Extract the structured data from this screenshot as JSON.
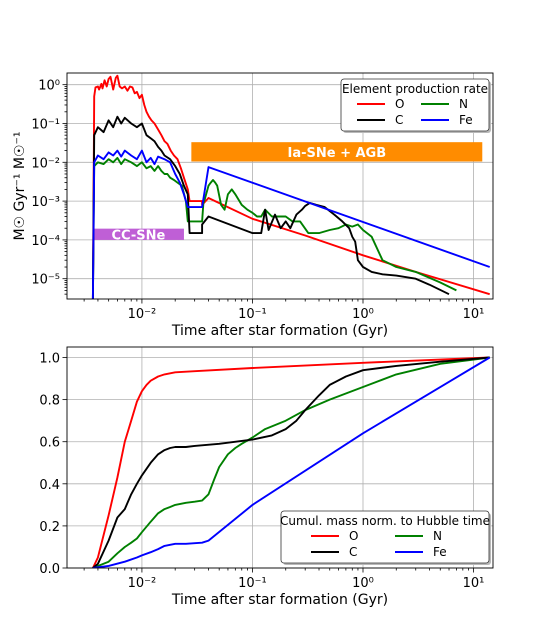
{
  "chart_data": [
    {
      "type": "line",
      "xscale": "log",
      "yscale": "log",
      "xlim": [
        0.0021,
        15
      ],
      "ylim": [
        3e-06,
        2.0
      ],
      "xlabel": "Time after star formation (Gyr)",
      "ylabel": "M☉ Gyr⁻¹ M☉⁻¹",
      "x_tick_labels": [
        "10⁻²",
        "10⁻¹",
        "10⁰",
        "10¹"
      ],
      "y_tick_labels": [
        "10⁻⁵",
        "10⁻⁴",
        "10⁻³",
        "10⁻²",
        "10⁻¹",
        "10⁰"
      ],
      "grid": true,
      "legend_title": "Element production rate",
      "legend_position": "top-right",
      "annotations": [
        {
          "text": "CC-SNe",
          "color": "#bf5fd6",
          "x_range": [
            0.0036,
            0.024
          ],
          "y_range": [
            0.0001,
            0.000195
          ]
        },
        {
          "text": "Ia-SNe + AGB",
          "color": "#ff8c00",
          "x_range": [
            0.028,
            12
          ],
          "y_range": [
            0.0105,
            0.033
          ]
        }
      ],
      "series": [
        {
          "name": "O",
          "color": "#ff0000",
          "x": [
            0.0036,
            0.0037,
            0.0038,
            0.004,
            0.0041,
            0.0043,
            0.0044,
            0.0046,
            0.0048,
            0.005,
            0.0052,
            0.0055,
            0.0058,
            0.006,
            0.0063,
            0.0066,
            0.007,
            0.0074,
            0.0078,
            0.0082,
            0.0086,
            0.009,
            0.0095,
            0.01,
            0.0105,
            0.011,
            0.0116,
            0.0122,
            0.013,
            0.014,
            0.015,
            0.016,
            0.017,
            0.0182,
            0.0195,
            0.021,
            0.0225,
            0.024,
            0.026,
            0.027,
            0.031,
            0.035,
            0.035,
            0.04,
            0.1,
            0.3,
            1.0,
            3.0,
            14.0
          ],
          "y": [
            3e-06,
            0.5,
            0.85,
            0.9,
            0.75,
            1.05,
            0.8,
            1.3,
            0.9,
            1.4,
            1.6,
            0.75,
            1.5,
            1.7,
            0.9,
            0.8,
            0.9,
            0.7,
            0.9,
            0.85,
            0.6,
            0.65,
            0.45,
            0.55,
            0.3,
            0.2,
            0.15,
            0.12,
            0.1,
            0.07,
            0.05,
            0.035,
            0.03,
            0.02,
            0.015,
            0.012,
            0.007,
            0.004,
            0.002,
            0.001,
            0.001,
            0.001,
            0.0008,
            0.0012,
            0.00035,
            0.00013,
            4e-05,
            1.5e-05,
            4e-06
          ]
        },
        {
          "name": "N",
          "color": "#008000",
          "x": [
            0.0036,
            0.0037,
            0.004,
            0.0045,
            0.005,
            0.0055,
            0.006,
            0.0065,
            0.007,
            0.008,
            0.009,
            0.01,
            0.011,
            0.012,
            0.013,
            0.014,
            0.015,
            0.016,
            0.017,
            0.018,
            0.0195,
            0.021,
            0.023,
            0.025,
            0.026,
            0.027,
            0.031,
            0.035,
            0.036,
            0.037,
            0.04,
            0.042,
            0.044,
            0.046,
            0.048,
            0.052,
            0.056,
            0.06,
            0.065,
            0.07,
            0.08,
            0.09,
            0.1,
            0.11,
            0.12,
            0.13,
            0.15,
            0.17,
            0.2,
            0.23,
            0.27,
            0.32,
            0.4,
            0.5,
            0.6,
            0.7,
            0.8,
            0.9,
            1.0,
            1.2,
            1.5,
            2.0,
            3.0,
            5.0,
            7.0
          ],
          "y": [
            3e-06,
            0.008,
            0.01,
            0.009,
            0.012,
            0.01,
            0.013,
            0.009,
            0.012,
            0.01,
            0.008,
            0.01,
            0.007,
            0.008,
            0.006,
            0.008,
            0.006,
            0.005,
            0.005,
            0.004,
            0.0035,
            0.003,
            0.0025,
            0.001,
            0.0003,
            0.0003,
            0.0003,
            0.0003,
            0.0009,
            0.0011,
            0.0025,
            0.003,
            0.0035,
            0.003,
            0.0025,
            0.0008,
            0.0006,
            0.0015,
            0.002,
            0.0015,
            0.0008,
            0.0006,
            0.0005,
            0.0004,
            0.0004,
            0.0006,
            0.0004,
            0.0004,
            0.0004,
            0.0003,
            0.0003,
            0.00015,
            0.00015,
            0.00018,
            0.0002,
            0.00025,
            0.00022,
            0.00025,
            0.00018,
            0.00012,
            3e-05,
            2e-05,
            1.5e-05,
            8e-06,
            5e-06
          ]
        },
        {
          "name": "C",
          "color": "#000000",
          "x": [
            0.0036,
            0.0037,
            0.004,
            0.0045,
            0.005,
            0.0055,
            0.006,
            0.0065,
            0.007,
            0.008,
            0.009,
            0.01,
            0.011,
            0.0122,
            0.013,
            0.014,
            0.015,
            0.016,
            0.018,
            0.02,
            0.022,
            0.024,
            0.026,
            0.027,
            0.031,
            0.035,
            0.035,
            0.04,
            0.1,
            0.12,
            0.13,
            0.14,
            0.16,
            0.18,
            0.2,
            0.22,
            0.25,
            0.28,
            0.3,
            0.33,
            0.38,
            0.45,
            0.55,
            0.65,
            0.75,
            0.8,
            0.85,
            0.9,
            1.0,
            1.2,
            1.5,
            2.0,
            3.0,
            4.0,
            6.0
          ],
          "y": [
            3e-06,
            0.05,
            0.08,
            0.06,
            0.12,
            0.08,
            0.15,
            0.1,
            0.14,
            0.1,
            0.08,
            0.1,
            0.05,
            0.04,
            0.035,
            0.025,
            0.02,
            0.015,
            0.012,
            0.008,
            0.005,
            0.0025,
            0.0015,
            0.00015,
            0.00015,
            0.00015,
            0.00025,
            0.0004,
            0.00015,
            0.00015,
            0.0006,
            0.00018,
            0.00045,
            0.0002,
            0.0003,
            0.0002,
            0.00045,
            0.0006,
            0.00075,
            0.0009,
            0.0008,
            0.0007,
            0.00045,
            0.0003,
            0.0002,
            0.00012,
            9e-05,
            3e-05,
            2e-05,
            1.5e-05,
            1.3e-05,
            1.2e-05,
            1e-05,
            7e-06,
            4e-06
          ]
        },
        {
          "name": "Fe",
          "color": "#0000ff",
          "x": [
            0.0036,
            0.0036,
            0.0037,
            0.004,
            0.0045,
            0.005,
            0.0055,
            0.006,
            0.0065,
            0.007,
            0.008,
            0.009,
            0.01,
            0.011,
            0.012,
            0.013,
            0.014,
            0.016,
            0.018,
            0.02,
            0.022,
            0.024,
            0.026,
            0.027,
            0.034,
            0.035,
            0.04,
            14.0
          ],
          "y": [
            3e-06,
            3e-06,
            0.01,
            0.015,
            0.012,
            0.018,
            0.015,
            0.02,
            0.014,
            0.02,
            0.015,
            0.012,
            0.02,
            0.01,
            0.013,
            0.009,
            0.014,
            0.012,
            0.01,
            0.005,
            0.003,
            0.0015,
            0.0007,
            0.0007,
            0.0007,
            0.0007,
            0.0075,
            2e-05
          ]
        }
      ]
    },
    {
      "type": "line",
      "xscale": "log",
      "yscale": "linear",
      "xlim": [
        0.0021,
        15
      ],
      "ylim": [
        0.0,
        1.05
      ],
      "xlabel": "Time after star formation (Gyr)",
      "ylabel": "",
      "x_tick_labels": [
        "10⁻²",
        "10⁻¹",
        "10⁰",
        "10¹"
      ],
      "y_tick_labels": [
        "0.0",
        "0.2",
        "0.4",
        "0.6",
        "0.8",
        "1.0"
      ],
      "grid": true,
      "legend_title": "Cumul. mass norm. to Hubble time",
      "legend_position": "bottom-right",
      "series": [
        {
          "name": "O",
          "color": "#ff0000",
          "x": [
            0.0036,
            0.004,
            0.005,
            0.006,
            0.007,
            0.008,
            0.009,
            0.01,
            0.011,
            0.012,
            0.014,
            0.016,
            0.02,
            0.03,
            0.1,
            1.0,
            14.0
          ],
          "y": [
            0.0,
            0.05,
            0.25,
            0.43,
            0.6,
            0.7,
            0.79,
            0.84,
            0.87,
            0.89,
            0.91,
            0.92,
            0.93,
            0.935,
            0.95,
            0.975,
            1.0
          ]
        },
        {
          "name": "N",
          "color": "#008000",
          "x": [
            0.0036,
            0.005,
            0.006,
            0.007,
            0.008,
            0.009,
            0.01,
            0.012,
            0.014,
            0.016,
            0.018,
            0.02,
            0.025,
            0.03,
            0.035,
            0.04,
            0.045,
            0.05,
            0.06,
            0.07,
            0.08,
            0.1,
            0.13,
            0.2,
            0.3,
            0.5,
            1.0,
            2.0,
            5.0,
            14.0
          ],
          "y": [
            0.0,
            0.03,
            0.07,
            0.1,
            0.12,
            0.14,
            0.17,
            0.22,
            0.26,
            0.28,
            0.29,
            0.3,
            0.31,
            0.315,
            0.32,
            0.35,
            0.42,
            0.48,
            0.54,
            0.57,
            0.59,
            0.62,
            0.66,
            0.7,
            0.75,
            0.8,
            0.86,
            0.92,
            0.97,
            1.0
          ]
        },
        {
          "name": "C",
          "color": "#000000",
          "x": [
            0.0036,
            0.004,
            0.005,
            0.006,
            0.007,
            0.008,
            0.009,
            0.01,
            0.012,
            0.014,
            0.016,
            0.018,
            0.02,
            0.025,
            0.03,
            0.05,
            0.1,
            0.15,
            0.2,
            0.25,
            0.3,
            0.4,
            0.5,
            0.7,
            1.0,
            2.0,
            5.0,
            14.0
          ],
          "y": [
            0.0,
            0.02,
            0.13,
            0.24,
            0.28,
            0.35,
            0.4,
            0.44,
            0.5,
            0.54,
            0.56,
            0.57,
            0.575,
            0.575,
            0.58,
            0.59,
            0.61,
            0.63,
            0.66,
            0.7,
            0.75,
            0.82,
            0.87,
            0.91,
            0.94,
            0.96,
            0.98,
            1.0
          ]
        },
        {
          "name": "Fe",
          "color": "#0000ff",
          "x": [
            0.0036,
            0.005,
            0.007,
            0.009,
            0.01,
            0.012,
            0.014,
            0.016,
            0.018,
            0.02,
            0.025,
            0.03,
            0.035,
            0.04,
            0.1,
            1.0,
            14.0
          ],
          "y": [
            0.0,
            0.01,
            0.03,
            0.05,
            0.06,
            0.075,
            0.09,
            0.105,
            0.11,
            0.115,
            0.115,
            0.118,
            0.12,
            0.13,
            0.3,
            0.64,
            1.0
          ]
        }
      ]
    }
  ]
}
